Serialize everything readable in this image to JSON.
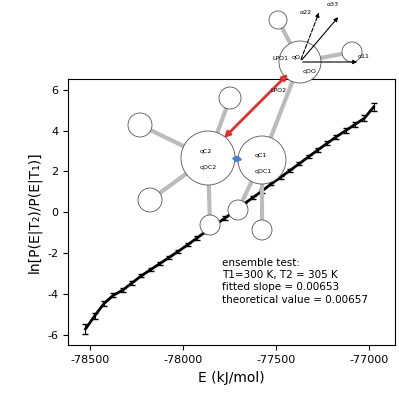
{
  "chart_data": {
    "type": "line",
    "xlabel": "E (kJ/mol)",
    "ylabel": "ln[P(E|T₂)/P(E|T₁)]",
    "x": [
      -78525,
      -78475,
      -78425,
      -78375,
      -78325,
      -78275,
      -78225,
      -78175,
      -78125,
      -78075,
      -78025,
      -77975,
      -77925,
      -77875,
      -77825,
      -77775,
      -77725,
      -77675,
      -77625,
      -77575,
      -77525,
      -77475,
      -77425,
      -77375,
      -77325,
      -77275,
      -77225,
      -77175,
      -77125,
      -77075,
      -77025,
      -76975
    ],
    "values": [
      -5.7,
      -5.05,
      -4.45,
      -4.05,
      -3.8,
      -3.45,
      -3.1,
      -2.8,
      -2.5,
      -2.2,
      -1.9,
      -1.58,
      -1.25,
      -0.92,
      -0.6,
      -0.28,
      0.05,
      0.4,
      0.72,
      1.05,
      1.4,
      1.72,
      2.05,
      2.38,
      2.72,
      3.05,
      3.38,
      3.7,
      4.0,
      4.3,
      4.6,
      5.15
    ],
    "errors": [
      0.25,
      0.15,
      0.12,
      0.1,
      0.1,
      0.1,
      0.08,
      0.08,
      0.08,
      0.08,
      0.08,
      0.08,
      0.08,
      0.08,
      0.08,
      0.08,
      0.08,
      0.08,
      0.08,
      0.08,
      0.08,
      0.08,
      0.08,
      0.08,
      0.08,
      0.1,
      0.1,
      0.1,
      0.12,
      0.12,
      0.15,
      0.2
    ],
    "color": "#000000",
    "xlim": [
      -78620,
      -76860
    ],
    "ylim": [
      -6.5,
      6.5
    ],
    "xticks": [
      -78500,
      -78000,
      -77500,
      -77000
    ],
    "yticks": [
      -6,
      -4,
      -2,
      0,
      2,
      4,
      6
    ],
    "annotations": [
      "ensemble test:",
      "T1=300 K, T2 = 305 K",
      "fitted slope = 0.00653",
      "theoretical value = 0.00657"
    ],
    "diagram": {
      "labels": [
        "qC2",
        "qDC2",
        "qC1",
        "qDC1",
        "qO",
        "qDO",
        "LPO1",
        "LPO2",
        "α22",
        "α33",
        "α11"
      ]
    }
  }
}
